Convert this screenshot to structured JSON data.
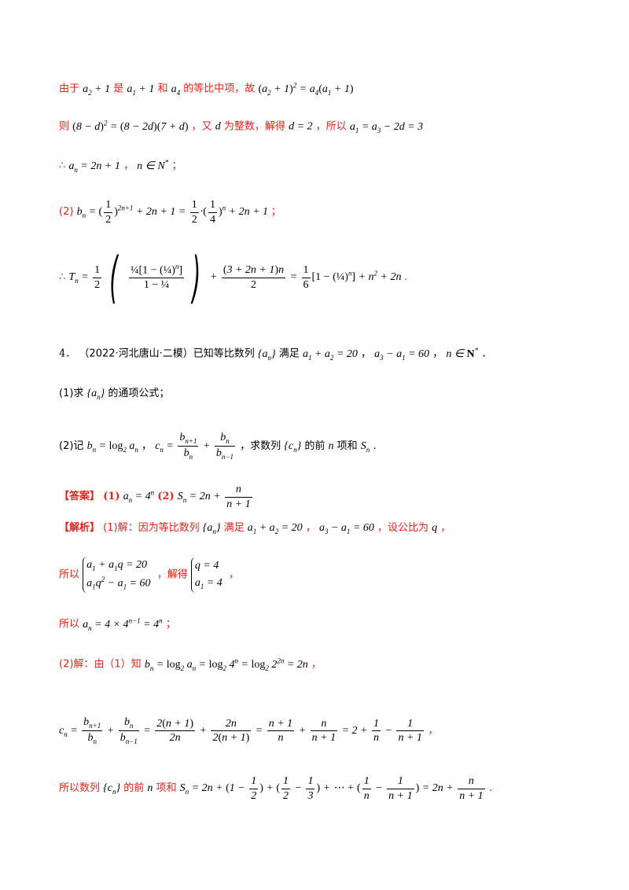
{
  "line1": {
    "text_a": "由于",
    "text_b": "是",
    "text_c": "和",
    "text_d": "的等比中项，故"
  },
  "line2": {
    "text_a": "则",
    "text_b": "，又",
    "text_c": "为整数，解得",
    "text_d": "，所以"
  },
  "line3": {
    "therefore": "∴",
    "sep": "，",
    "end": "；"
  },
  "line4": {
    "label": "(2)",
    "end": "；"
  },
  "line5": {
    "therefore": "∴",
    "end": "."
  },
  "problem4": {
    "number": "4．",
    "source": "（2022·河北唐山·二模）已知等比数列",
    "text_b": "满足",
    "text_c": "，",
    "text_d": "，",
    "end": "．"
  },
  "q1": {
    "label": "(1)求",
    "text": "的通项公式；"
  },
  "q2": {
    "label": "(2)记",
    "sep": "，",
    "text_a": "，求数列",
    "text_b": "的前",
    "n": "n",
    "text_c": "项和",
    "end": "."
  },
  "answer": {
    "tag": "【答案】",
    "part1": "(1)",
    "part2": "(2)"
  },
  "analysis": {
    "tag": "【解析】",
    "text_a": "(1)解：因为等比数列",
    "text_b": "满足",
    "text_c": "，",
    "text_d": "，设公比为",
    "end": "，"
  },
  "sol1": {
    "text_a": "所以",
    "text_b": "，解得",
    "end": "，"
  },
  "sol2": {
    "text_a": "所以",
    "end": "；"
  },
  "sol3": {
    "text_a": "(2)解：由（1）知",
    "end": "，"
  },
  "sol4": {
    "end": "，"
  },
  "sol5": {
    "text_a": "所以数列",
    "text_b": "的前",
    "n": "n",
    "text_c": "项和",
    "end": "."
  }
}
